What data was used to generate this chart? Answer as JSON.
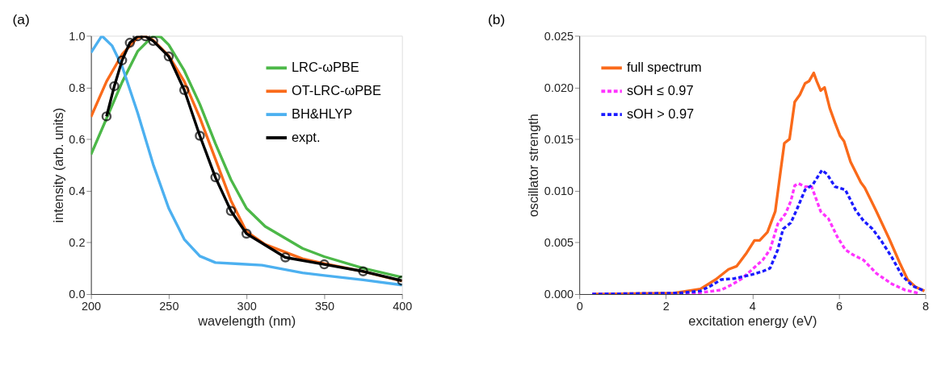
{
  "chart_data": [
    {
      "type": "line",
      "title": "(a)",
      "xlabel": "wavelength (nm)",
      "ylabel": "intensity (arb. units)",
      "xlim": [
        200,
        400
      ],
      "ylim": [
        0,
        1.0
      ],
      "xticks": [
        200,
        250,
        300,
        350,
        400
      ],
      "yticks": [
        {
          "value": 0,
          "label": "0.0"
        },
        0.2,
        0.4,
        0.6,
        0.8,
        {
          "value": 1.0,
          "label": "1.0"
        }
      ],
      "grid": false,
      "legend": "top right",
      "line_style": "solid",
      "series": [
        {
          "name": "LRC-ωPBE",
          "color": "#4cb848",
          "x": [
            200,
            210,
            220,
            230,
            240,
            245,
            250,
            260,
            270,
            280,
            290,
            300,
            312,
            336,
            350,
            375,
            400
          ],
          "values": [
            0.54,
            0.68,
            0.82,
            0.94,
            1.0,
            0.995,
            0.965,
            0.865,
            0.735,
            0.583,
            0.443,
            0.332,
            0.262,
            0.177,
            0.145,
            0.1,
            0.065
          ]
        },
        {
          "name": "OT-LRC-ωPBE",
          "color": "#fa6a1a",
          "x": [
            200,
            210,
            220,
            230,
            235,
            240,
            250,
            260,
            270,
            280,
            290,
            300,
            312,
            336,
            350,
            375,
            400
          ],
          "values": [
            0.686,
            0.823,
            0.928,
            0.993,
            0.998,
            0.983,
            0.923,
            0.823,
            0.683,
            0.523,
            0.362,
            0.242,
            0.192,
            0.137,
            0.118,
            0.088,
            0.05
          ]
        },
        {
          "name": "BH&HLYP",
          "color": "#4cb0f0",
          "x": [
            200,
            207,
            213.5,
            220,
            230,
            240,
            250,
            260,
            270,
            280,
            295,
            310,
            336,
            350,
            375,
            400
          ],
          "values": [
            0.935,
            1.0,
            0.962,
            0.882,
            0.702,
            0.502,
            0.332,
            0.212,
            0.147,
            0.122,
            0.117,
            0.112,
            0.082,
            0.072,
            0.055,
            0.035
          ]
        },
        {
          "name": "expt.",
          "color": "#000000",
          "marker": "circle",
          "x": [
            210,
            215,
            220,
            225,
            230,
            235,
            240,
            250,
            260,
            270,
            280,
            290,
            300,
            325,
            350,
            375,
            400
          ],
          "values": [
            0.688,
            0.805,
            0.905,
            0.973,
            0.998,
            0.998,
            0.98,
            0.92,
            0.79,
            0.613,
            0.452,
            0.322,
            0.234,
            0.142,
            0.115,
            0.088,
            0.052
          ]
        }
      ]
    },
    {
      "type": "line",
      "title": "(b)",
      "xlabel": "excitation energy (eV)",
      "ylabel": "oscillator strength",
      "xlim": [
        0,
        8
      ],
      "ylim": [
        0,
        0.025
      ],
      "xticks": [
        0,
        2,
        4,
        6,
        8
      ],
      "yticks": [
        {
          "value": 0,
          "label": "0.000"
        },
        {
          "value": 0.005,
          "label": "0.005"
        },
        {
          "value": 0.01,
          "label": "0.010"
        },
        {
          "value": 0.015,
          "label": "0.015"
        },
        {
          "value": 0.02,
          "label": "0.020"
        },
        {
          "value": 0.025,
          "label": "0.025"
        }
      ],
      "grid": false,
      "legend": "top left",
      "series": [
        {
          "name": "full spectrum",
          "color": "#fa6a1a",
          "line_style": "solid",
          "x": [
            0.3,
            2.2,
            2.8,
            3.15,
            3.45,
            3.64,
            3.87,
            4.05,
            4.17,
            4.35,
            4.53,
            4.65,
            4.74,
            4.86,
            4.98,
            5.1,
            5.22,
            5.31,
            5.42,
            5.49,
            5.58,
            5.67,
            5.79,
            5.91,
            6.03,
            6.12,
            6.27,
            6.51,
            6.6,
            6.87,
            7.17,
            7.41,
            7.59,
            7.77,
            7.98
          ],
          "values": [
            0,
            0.0001,
            0.0005,
            0.0014,
            0.0024,
            0.0027,
            0.004,
            0.0052,
            0.0052,
            0.006,
            0.008,
            0.0118,
            0.0146,
            0.015,
            0.0186,
            0.0193,
            0.0204,
            0.0206,
            0.0214,
            0.0206,
            0.0197,
            0.02,
            0.018,
            0.0166,
            0.0153,
            0.0148,
            0.0128,
            0.0108,
            0.0103,
            0.008,
            0.0053,
            0.003,
            0.0014,
            0.0007,
            0.0003
          ]
        },
        {
          "name": "sOH ≤ 0.97",
          "color": "#ff33ff",
          "line_style": "dashed",
          "x": [
            0.3,
            2.5,
            2.92,
            3.28,
            3.52,
            3.76,
            4.0,
            4.24,
            4.41,
            4.59,
            4.77,
            4.89,
            4.98,
            5.07,
            5.22,
            5.37,
            5.46,
            5.58,
            5.76,
            5.97,
            6.15,
            6.33,
            6.57,
            6.87,
            7.22,
            7.53,
            7.83
          ],
          "values": [
            0,
            0,
            0.0002,
            0.0004,
            0.0009,
            0.0015,
            0.0024,
            0.0033,
            0.0043,
            0.0068,
            0.0078,
            0.009,
            0.0105,
            0.0107,
            0.0104,
            0.0104,
            0.0094,
            0.008,
            0.0073,
            0.0055,
            0.0043,
            0.0038,
            0.0033,
            0.002,
            0.001,
            0.0004,
            0.0001
          ]
        },
        {
          "name": "sOH > 0.97",
          "color": "#1a1aff",
          "line_style": "dashed",
          "x": [
            0.3,
            2.32,
            2.8,
            3.04,
            3.28,
            3.58,
            4.0,
            4.24,
            4.41,
            4.59,
            4.71,
            4.89,
            5.04,
            5.22,
            5.4,
            5.61,
            5.73,
            5.91,
            6.15,
            6.39,
            6.57,
            6.78,
            6.99,
            7.22,
            7.46,
            7.7,
            7.98
          ],
          "values": [
            0,
            0.0001,
            0.0003,
            0.0008,
            0.0014,
            0.0015,
            0.0019,
            0.0022,
            0.0025,
            0.0043,
            0.0063,
            0.0069,
            0.0083,
            0.0101,
            0.0106,
            0.012,
            0.0116,
            0.0104,
            0.0101,
            0.0081,
            0.0071,
            0.0063,
            0.0051,
            0.0036,
            0.0018,
            0.0008,
            0.0003
          ]
        }
      ]
    }
  ]
}
